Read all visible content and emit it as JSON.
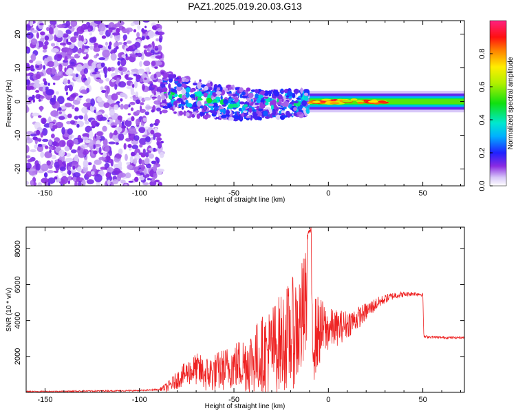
{
  "title": "PAZ1.2025.019.20.03.G13",
  "chart_data": [
    {
      "type": "heatmap",
      "xlabel": "Height of straight line (km)",
      "ylabel": "Frequency (Hz)",
      "xlim": [
        -160,
        72
      ],
      "ylim": [
        -25,
        24
      ],
      "xticks": [
        -150,
        -100,
        -50,
        0,
        50
      ],
      "yticks": [
        -20,
        -10,
        0,
        10,
        20
      ],
      "colorbar": {
        "label": "Normalized spectral amplitude",
        "range": [
          0,
          1
        ],
        "ticks": [
          0.0,
          0.2,
          0.4,
          0.6,
          0.8
        ],
        "colormap": "rainbow (white-violet-blue-cyan-green-yellow-red-pink)"
      },
      "regions": [
        {
          "x_range": [
            -160,
            -88
          ],
          "freq_range": [
            -25,
            24
          ],
          "amplitude": [
            0.05,
            0.2
          ],
          "description": "broad noise"
        },
        {
          "x_range": [
            -88,
            -10
          ],
          "freq_center_start": 3,
          "freq_center_end": 0,
          "freq_spread": 6,
          "amplitude": [
            0.1,
            0.5
          ]
        },
        {
          "x_range": [
            -10,
            72
          ],
          "freq_center": 0,
          "freq_width": 2,
          "amplitude": [
            0.5,
            1.0
          ]
        }
      ],
      "grid": false
    },
    {
      "type": "line",
      "xlabel": "Height of straight line (km)",
      "ylabel": "SNR (10 * v/v)",
      "xlim": [
        -160,
        72
      ],
      "ylim": [
        0,
        9200
      ],
      "xticks": [
        -150,
        -100,
        -50,
        0,
        50
      ],
      "yticks": [
        2000,
        4000,
        6000,
        8000
      ],
      "series": [
        {
          "color": "#ee2222",
          "points": [
            [
              -160,
              50
            ],
            [
              -140,
              60
            ],
            [
              -120,
              80
            ],
            [
              -100,
              100
            ],
            [
              -90,
              150
            ],
            [
              -85,
              300
            ],
            [
              -80,
              700
            ],
            [
              -75,
              1100
            ],
            [
              -70,
              1300
            ],
            [
              -65,
              1000
            ],
            [
              -60,
              1100
            ],
            [
              -55,
              1300
            ],
            [
              -50,
              1500
            ],
            [
              -45,
              1600
            ],
            [
              -40,
              1800
            ],
            [
              -35,
              2100
            ],
            [
              -30,
              2400
            ],
            [
              -25,
              2800
            ],
            [
              -20,
              3200
            ],
            [
              -15,
              3700
            ],
            [
              -12,
              4600
            ],
            [
              -10,
              9100
            ],
            [
              -8,
              3000
            ],
            [
              -5,
              3400
            ],
            [
              0,
              3500
            ],
            [
              5,
              3600
            ],
            [
              10,
              3800
            ],
            [
              15,
              4100
            ],
            [
              20,
              4500
            ],
            [
              25,
              4900
            ],
            [
              30,
              5200
            ],
            [
              35,
              5400
            ],
            [
              40,
              5450
            ],
            [
              45,
              5500
            ],
            [
              50,
              5450
            ],
            [
              50.5,
              3100
            ],
            [
              55,
              3080
            ],
            [
              60,
              3050
            ],
            [
              65,
              3050
            ],
            [
              72,
              3050
            ]
          ],
          "noise_amplitude": [
            [
              -160,
              30
            ],
            [
              -90,
              40
            ],
            [
              -85,
              300
            ],
            [
              -70,
              900
            ],
            [
              -50,
              1300
            ],
            [
              -30,
              2500
            ],
            [
              -12,
              3500
            ],
            [
              -8,
              2500
            ],
            [
              0,
              1200
            ],
            [
              10,
              800
            ],
            [
              20,
              500
            ],
            [
              30,
              250
            ],
            [
              40,
              150
            ],
            [
              50,
              100
            ],
            [
              51,
              80
            ],
            [
              72,
              60
            ]
          ]
        }
      ],
      "grid": false
    }
  ]
}
